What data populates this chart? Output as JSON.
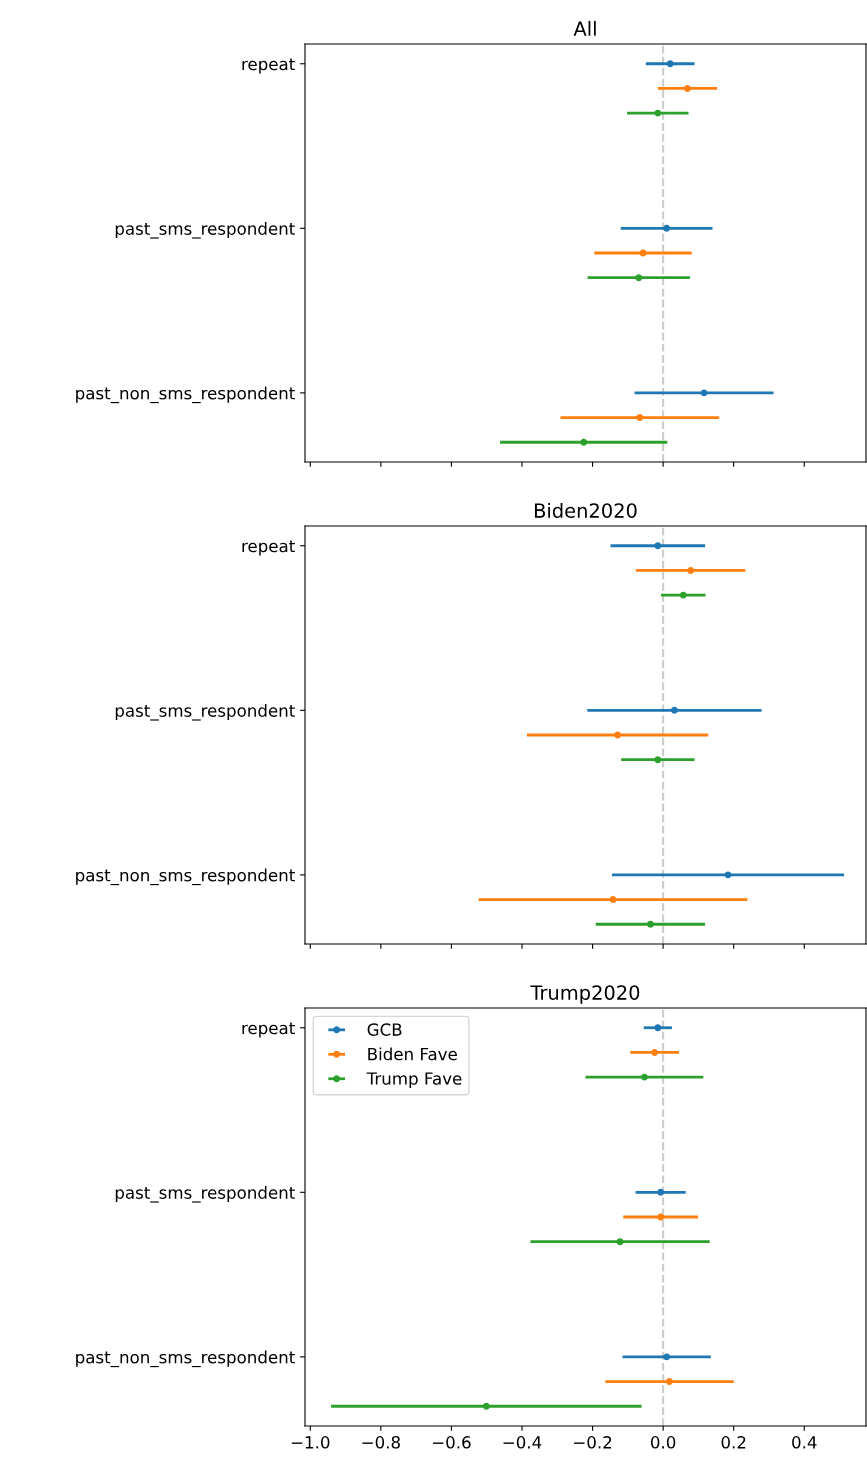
{
  "chart_data": [
    {
      "type": "scatter",
      "title": "All",
      "orientation": "horizontal",
      "marker": "circle",
      "legend": false,
      "tick_labels": "y",
      "categories": [
        "repeat",
        "past_sms_respondent",
        "past_non_sms_respondent"
      ],
      "series": [
        {
          "color": "#1f77b4",
          "values": [
            0.02,
            0.01,
            0.116
          ],
          "errors": [
            0.069,
            0.13,
            0.197
          ]
        },
        {
          "color": "#ff7f0e",
          "values": [
            0.069,
            -0.057,
            -0.066
          ],
          "errors": [
            0.084,
            0.138,
            0.225
          ]
        },
        {
          "color": "#2ca02c",
          "values": [
            -0.015,
            -0.069,
            -0.225
          ],
          "errors": [
            0.087,
            0.145,
            0.237
          ]
        }
      ],
      "xlim": [
        -1.015,
        0.575
      ],
      "xticks": [
        -1.0,
        -0.8,
        -0.6,
        -0.4,
        -0.2,
        0.0,
        0.2,
        0.4
      ],
      "ref_lines": [
        {
          "axis": "x",
          "value": 0,
          "color": "#cccccc",
          "line_style": "dashed"
        }
      ]
    },
    {
      "type": "scatter",
      "title": "Biden2020",
      "orientation": "horizontal",
      "marker": "circle",
      "legend": false,
      "tick_labels": "y",
      "categories": [
        "repeat",
        "past_sms_respondent",
        "past_non_sms_respondent"
      ],
      "series": [
        {
          "color": "#1f77b4",
          "values": [
            -0.015,
            0.032,
            0.184
          ],
          "errors": [
            0.134,
            0.247,
            0.329
          ]
        },
        {
          "color": "#ff7f0e",
          "values": [
            0.078,
            -0.129,
            -0.142
          ],
          "errors": [
            0.155,
            0.257,
            0.381
          ]
        },
        {
          "color": "#2ca02c",
          "values": [
            0.057,
            -0.015,
            -0.036
          ],
          "errors": [
            0.063,
            0.104,
            0.155
          ]
        }
      ],
      "xlim": [
        -1.015,
        0.575
      ],
      "xticks": [
        -1.0,
        -0.8,
        -0.6,
        -0.4,
        -0.2,
        0.0,
        0.2,
        0.4
      ],
      "ref_lines": [
        {
          "axis": "x",
          "value": 0,
          "color": "#cccccc",
          "line_style": "dashed"
        }
      ]
    },
    {
      "type": "scatter",
      "title": "Trump2020",
      "orientation": "horizontal",
      "marker": "circle",
      "legend": "top left",
      "categories": [
        "repeat",
        "past_sms_respondent",
        "past_non_sms_respondent"
      ],
      "series": [
        {
          "name": "GCB",
          "color": "#1f77b4",
          "values": [
            -0.015,
            -0.007,
            0.01
          ],
          "errors": [
            0.04,
            0.071,
            0.125
          ]
        },
        {
          "name": "Biden Fave",
          "color": "#ff7f0e",
          "values": [
            -0.024,
            -0.007,
            0.018
          ],
          "errors": [
            0.069,
            0.106,
            0.182
          ]
        },
        {
          "name": "Trump Fave",
          "color": "#2ca02c",
          "values": [
            -0.053,
            -0.122,
            -0.501
          ],
          "errors": [
            0.167,
            0.254,
            0.44
          ]
        }
      ],
      "xlim": [
        -1.015,
        0.575
      ],
      "xticks": [
        {
          "value": -1.0,
          "label": "−1.0"
        },
        {
          "value": -0.8,
          "label": "−0.8"
        },
        {
          "value": -0.6,
          "label": "−0.6"
        },
        {
          "value": -0.4,
          "label": "−0.4"
        },
        {
          "value": -0.2,
          "label": "−0.2"
        },
        {
          "value": 0.0,
          "label": "0.0"
        },
        {
          "value": 0.2,
          "label": "0.2"
        },
        {
          "value": 0.4,
          "label": "0.4"
        }
      ],
      "ref_lines": [
        {
          "axis": "x",
          "value": 0,
          "color": "#cccccc",
          "line_style": "dashed"
        }
      ]
    }
  ]
}
